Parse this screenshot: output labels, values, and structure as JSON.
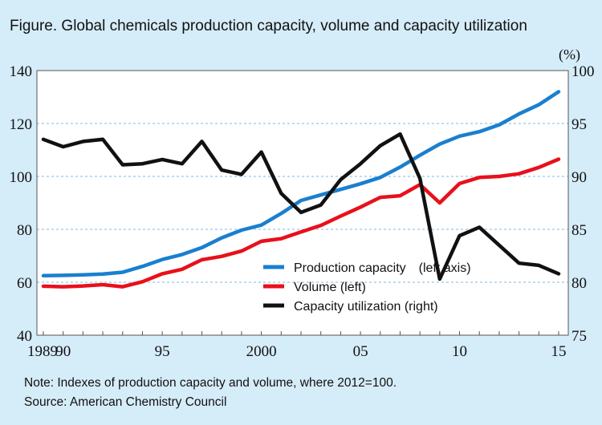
{
  "title": "Figure. Global chemicals production capacity, volume and capacity utilization",
  "right_unit": "(%)",
  "note": "Note: Indexes of production capacity and volume, where 2012=100.",
  "source": "Source: American Chemistry Council",
  "chart_data": {
    "type": "line",
    "x": [
      1989,
      1990,
      1991,
      1992,
      1993,
      1994,
      1995,
      1996,
      1997,
      1998,
      1999,
      2000,
      2001,
      2002,
      2003,
      2004,
      2005,
      2006,
      2007,
      2008,
      2009,
      2010,
      2011,
      2012,
      2013,
      2014,
      2015
    ],
    "x_tick_labels": [
      {
        "x": 1989,
        "label": "1989"
      },
      {
        "x": 1990,
        "label": "90"
      },
      {
        "x": 1995,
        "label": "95"
      },
      {
        "x": 2000,
        "label": "2000"
      },
      {
        "x": 2005,
        "label": "05"
      },
      {
        "x": 2010,
        "label": "10"
      },
      {
        "x": 2015,
        "label": "15"
      }
    ],
    "left_axis": {
      "ylim": [
        40,
        140
      ],
      "ticks": [
        40,
        60,
        80,
        100,
        120,
        140
      ]
    },
    "right_axis": {
      "ylim": [
        75,
        100
      ],
      "ticks": [
        75,
        80,
        85,
        90,
        95,
        100
      ],
      "unit": "(%)"
    },
    "grid": true,
    "legend_position": "bottom-right",
    "series": [
      {
        "name": "Production capacity　(left axis)",
        "axis": "left",
        "color": "#1a7fcf",
        "values": [
          62.5,
          62.6,
          62.8,
          63.1,
          63.8,
          66,
          68.6,
          70.5,
          73.1,
          76.8,
          79.7,
          81.6,
          86,
          90.9,
          93,
          95.1,
          97.2,
          99.6,
          103.5,
          108,
          112.2,
          115.2,
          116.9,
          119.5,
          123.6,
          127.1,
          132
        ]
      },
      {
        "name": "Volume (left)",
        "axis": "left",
        "color": "#e8101c",
        "values": [
          58.5,
          58.3,
          58.6,
          59.1,
          58.3,
          60.2,
          63.2,
          64.9,
          68.5,
          69.8,
          71.8,
          75.5,
          76.5,
          79,
          81.5,
          85,
          88.4,
          92.1,
          92.7,
          96.9,
          90,
          97.3,
          99.6,
          100,
          101,
          103.4,
          106.5
        ]
      },
      {
        "name": "Capacity utilization (right)",
        "axis": "right",
        "color": "#111111",
        "values": [
          93.5,
          92.8,
          93.3,
          93.5,
          91.1,
          91.2,
          91.6,
          91.2,
          93.3,
          90.6,
          90.2,
          92.3,
          88.4,
          86.6,
          87.3,
          89.7,
          91.2,
          92.9,
          94,
          89.8,
          80.3,
          84.4,
          85.2,
          83.5,
          81.8,
          81.6,
          80.8
        ]
      }
    ]
  }
}
